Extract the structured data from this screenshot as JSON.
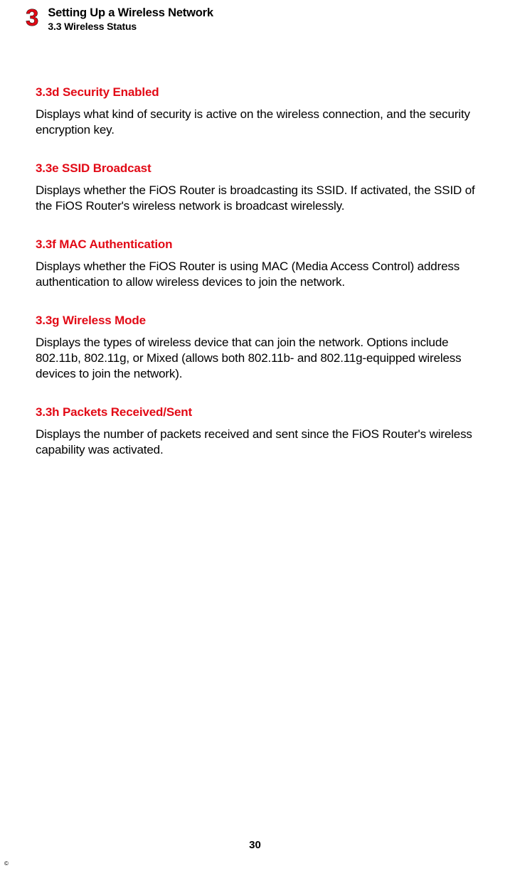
{
  "header": {
    "chapter_number": "3",
    "chapter_title": "Setting Up a Wireless Network",
    "section_title": "3.3  Wireless Status"
  },
  "sections": [
    {
      "heading": "3.3d  Security Enabled",
      "body": "Displays what kind of security is active on the wireless connection, and the security encryption key."
    },
    {
      "heading": "3.3e  SSID Broadcast",
      "body": "Displays whether the FiOS Router is broadcasting its SSID. If activated, the SSID of the FiOS Router's wireless network is broadcast wirelessly."
    },
    {
      "heading": "3.3f  MAC Authentication",
      "body": "Displays whether the FiOS Router is using MAC (Media Access Control) address authentication to allow wireless devices to join the network."
    },
    {
      "heading": "3.3g  Wireless Mode",
      "body": "Displays the types of wireless device that can join the network. Options include 802.11b, 802.11g, or Mixed (allows both 802.11b- and 802.11g-equipped wireless devices to join the network)."
    },
    {
      "heading": "3.3h  Packets Received/Sent",
      "body": "Displays the number of packets received and sent since the FiOS Router's wireless capability was activated."
    }
  ],
  "page_number": "30",
  "copyright": "©",
  "colors": {
    "accent_red": "#e20a16",
    "body_text": "#000000",
    "background": "#ffffff"
  }
}
